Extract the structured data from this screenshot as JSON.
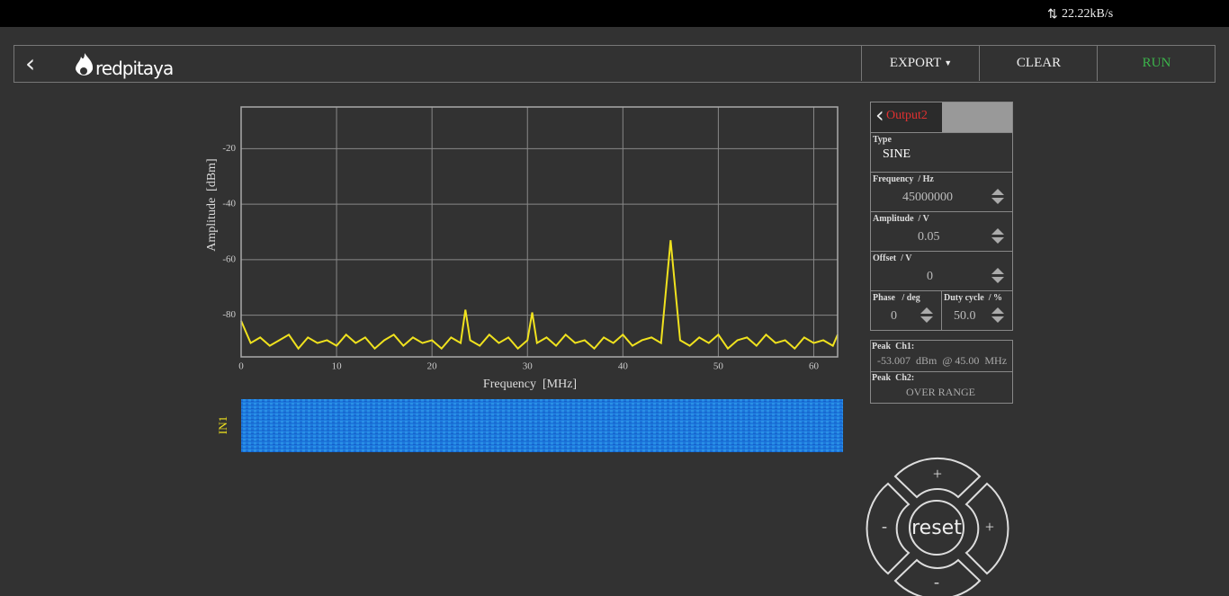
{
  "status_bar": {
    "speed": "22.22kB/s"
  },
  "header": {
    "logo": "redpitaya",
    "export": "EXPORT",
    "clear": "CLEAR",
    "run": "RUN"
  },
  "chart_data": {
    "type": "line",
    "x": [
      0,
      1,
      2,
      3,
      4,
      5,
      6,
      7,
      8,
      9,
      10,
      11,
      12,
      13,
      14,
      15,
      16,
      17,
      18,
      19,
      20,
      21,
      22,
      23,
      23.5,
      24,
      25,
      26,
      27,
      28,
      29,
      30,
      30.5,
      31,
      32,
      33,
      34,
      35,
      36,
      37,
      38,
      39,
      40,
      41,
      42,
      43,
      44,
      45,
      46,
      47,
      48,
      49,
      50,
      51,
      52,
      53,
      54,
      55,
      56,
      57,
      58,
      59,
      60,
      61,
      62,
      62.5
    ],
    "series": [
      {
        "color": "#f0e21e",
        "values": [
          -82,
          -90,
          -88,
          -91,
          -89,
          -87,
          -92,
          -88,
          -90,
          -89,
          -91,
          -87,
          -90,
          -88,
          -92,
          -89,
          -87,
          -91,
          -88,
          -90,
          -89,
          -92,
          -88,
          -90,
          -78,
          -89,
          -91,
          -87,
          -90,
          -88,
          -92,
          -89,
          -79,
          -90,
          -88,
          -91,
          -87,
          -90,
          -89,
          -92,
          -88,
          -90,
          -87,
          -91,
          -89,
          -88,
          -90,
          -53,
          -89,
          -91,
          -88,
          -90,
          -87,
          -92,
          -89,
          -88,
          -91,
          -87,
          -90,
          -89,
          -92,
          -88,
          -90,
          -89,
          -91,
          -87
        ]
      }
    ],
    "xlabel": "Frequency  [MHz]",
    "ylabel": "Amplitude  [dBm]",
    "xlim": [
      0,
      62.5
    ],
    "ylim": [
      -95,
      -5
    ],
    "xticks": [
      0,
      10,
      20,
      30,
      40,
      50,
      60
    ],
    "yticks": [
      -20,
      -40,
      -60,
      -80
    ],
    "grid": true,
    "waterfall_label": "IN1"
  },
  "panel": {
    "tab": "Output2",
    "type_label": "Type",
    "type_value": "SINE",
    "frequency_label": "Frequency  / Hz",
    "frequency_value": "45000000",
    "amplitude_label": "Amplitude  / V",
    "amplitude_value": "0.05",
    "offset_label": "Offset  / V",
    "offset_value": "0",
    "phase_label": "Phase   / deg",
    "phase_value": "0",
    "duty_label": "Duty cycle  / %",
    "duty_value": "50.0",
    "peak1_label": "Peak  Ch1:",
    "peak1_value": "-53.007  dBm  @ 45.00  MHz",
    "peak2_label": "Peak  Ch2:",
    "peak2_value": "OVER RANGE"
  },
  "joystick": {
    "center": "reset",
    "up": "+",
    "left": "-",
    "right": "+",
    "down": "-"
  }
}
